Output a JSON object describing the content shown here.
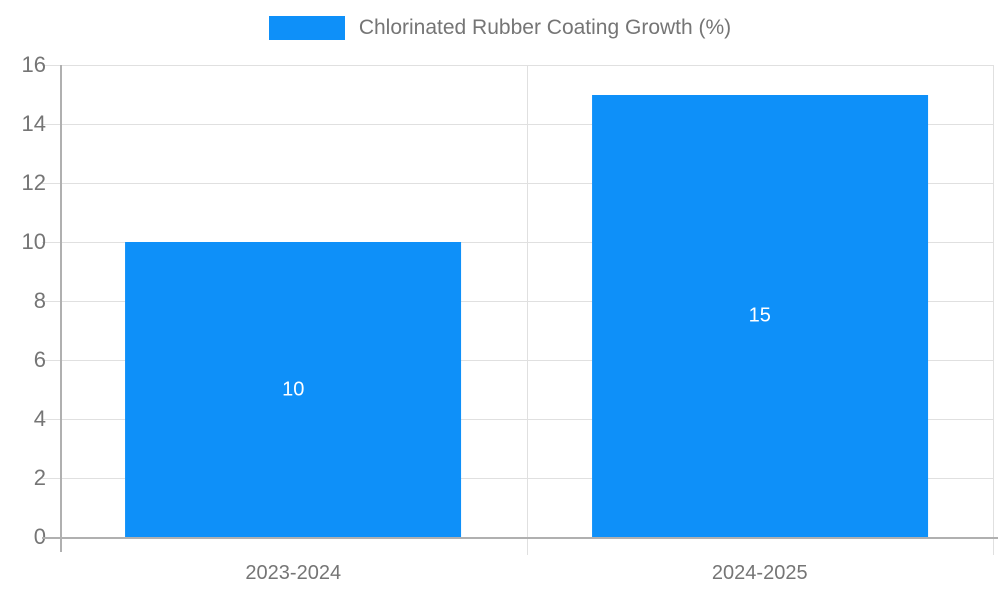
{
  "chart_data": {
    "type": "bar",
    "title": "Chlorinated Rubber Coating Growth (%)",
    "categories": [
      "2023-2024",
      "2024-2025"
    ],
    "series": [
      {
        "name": "Chlorinated Rubber Coating Growth (%)",
        "values": [
          10,
          15
        ],
        "bar_labels": [
          "10",
          "15"
        ]
      }
    ],
    "xlabel": "",
    "ylabel": "",
    "ylim": [
      0,
      16
    ],
    "ytick_step": 2,
    "ytick_labels": [
      "0",
      "2",
      "4",
      "6",
      "8",
      "10",
      "12",
      "14",
      "16"
    ],
    "grid": true,
    "legend_position": "top-center"
  },
  "colors": {
    "bar": "#0e90f9",
    "grid": "#e0e0e0",
    "axis": "#b0b0b0",
    "text": "#757575",
    "bar_label_text": "#ffffff",
    "background": "#ffffff"
  }
}
